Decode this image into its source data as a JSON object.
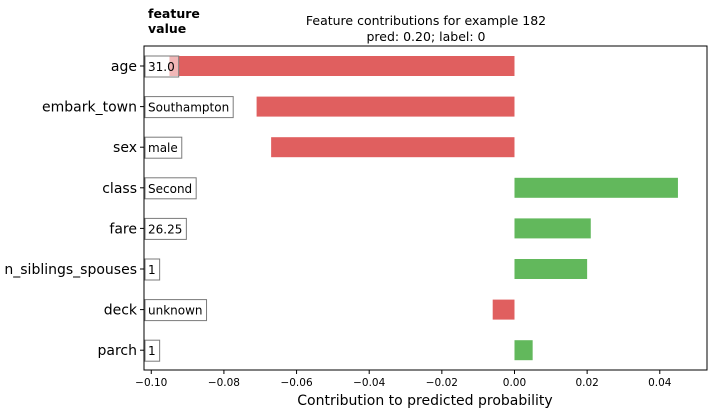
{
  "chart_data": {
    "type": "bar",
    "orientation": "horizontal",
    "title": "Feature contributions for example 182",
    "subtitle": "pred: 0.20; label: 0",
    "xlabel": "Contribution to predicted probability",
    "value_header": "feature\nvalue",
    "xlim": [
      -0.102,
      0.053
    ],
    "xticks": [
      -0.1,
      -0.08,
      -0.06,
      -0.04,
      -0.02,
      0.0,
      0.02,
      0.04
    ],
    "xtick_labels": [
      "−0.10",
      "−0.08",
      "−0.06",
      "−0.04",
      "−0.02",
      "0.00",
      "0.02",
      "0.04"
    ],
    "grid": false,
    "categories": [
      "age",
      "embark_town",
      "sex",
      "class",
      "fare",
      "n_siblings_spouses",
      "deck",
      "parch"
    ],
    "feature_values": [
      "31.0",
      "Southampton",
      "male",
      "Second",
      "26.25",
      "1",
      "unknown",
      "1"
    ],
    "values": [
      -0.095,
      -0.071,
      -0.067,
      0.045,
      0.021,
      0.02,
      -0.006,
      0.005
    ],
    "colors": {
      "negative": "#e05f5f",
      "positive": "#62b85c"
    }
  }
}
